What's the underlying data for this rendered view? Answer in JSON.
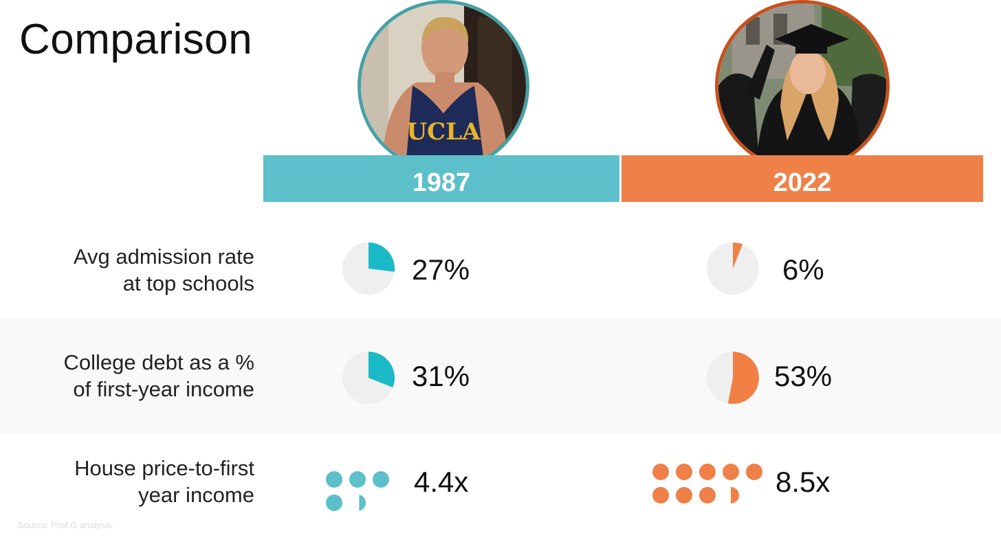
{
  "title": "Comparison",
  "source": "Source: Prof G analysis.",
  "colors": {
    "y1987": "#5bc0c9",
    "y2022": "#ef8048",
    "pie_bg": "#efefef",
    "pie_1987": "#1ab9c7",
    "pie_2022": "#f08043"
  },
  "photos": {
    "y1987": {
      "description_icon": "person-photo-icon",
      "shirt_text": "UCLA"
    },
    "y2022": {
      "description_icon": "graduate-photo-icon"
    }
  },
  "chart_data": {
    "type": "table",
    "columns": [
      "1987",
      "2022"
    ],
    "rows": [
      {
        "label_lines": [
          "Avg admission rate",
          "at top schools"
        ],
        "values": [
          27,
          6
        ],
        "display": [
          "27%",
          "6%"
        ],
        "mark": "pie"
      },
      {
        "label_lines": [
          "College debt as a %",
          "of first-year income"
        ],
        "values": [
          31,
          53
        ],
        "display": [
          "31%",
          "53%"
        ],
        "mark": "pie"
      },
      {
        "label_lines": [
          "House price-to-first",
          "year income"
        ],
        "values": [
          4.4,
          8.5
        ],
        "display": [
          "4.4x",
          "8.5x"
        ],
        "mark": "dots"
      }
    ]
  }
}
